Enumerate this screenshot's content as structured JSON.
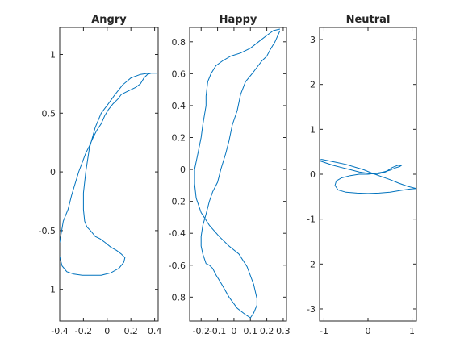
{
  "chart_data": [
    {
      "type": "line",
      "title": "Angry",
      "xlim": [
        -0.4,
        0.43
      ],
      "ylim": [
        -1.27,
        1.23
      ],
      "xticks": [
        -0.4,
        -0.2,
        0,
        0.2,
        0.4
      ],
      "xtick_labels": [
        "-0.4",
        "-0.2",
        "0",
        "0.2",
        "0.4"
      ],
      "yticks": [
        -1,
        -0.5,
        0,
        0.5,
        1
      ],
      "ytick_labels": [
        "-1",
        "-0.5",
        "0",
        "0.5",
        "1"
      ],
      "grid": false,
      "color": "#0072bd",
      "series": [
        {
          "x": [
            -0.4,
            -0.37,
            -0.33,
            -0.3,
            -0.27,
            -0.24,
            -0.21,
            -0.18,
            -0.15,
            -0.12,
            -0.09,
            -0.05,
            -0.02,
            0.01,
            0.05,
            0.09,
            0.12,
            0.16,
            0.2,
            0.24,
            0.28,
            0.31,
            0.34,
            0.37,
            0.4,
            0.42,
            0.35,
            0.28,
            0.2,
            0.13,
            0.06,
            0.01,
            -0.05,
            -0.1,
            -0.15,
            -0.18,
            -0.2,
            -0.2,
            -0.19,
            -0.17,
            -0.14,
            -0.1,
            -0.06,
            -0.02,
            0.03,
            0.08,
            0.12,
            0.15,
            0.14,
            0.1,
            0.03,
            -0.05,
            -0.13,
            -0.21,
            -0.28,
            -0.34,
            -0.38,
            -0.4
          ],
          "y": [
            -0.6,
            -0.42,
            -0.32,
            -0.2,
            -0.1,
            0,
            0.08,
            0.16,
            0.22,
            0.29,
            0.35,
            0.41,
            0.48,
            0.53,
            0.58,
            0.62,
            0.66,
            0.68,
            0.7,
            0.72,
            0.75,
            0.8,
            0.83,
            0.84,
            0.84,
            0.84,
            0.84,
            0.83,
            0.8,
            0.74,
            0.65,
            0.58,
            0.5,
            0.38,
            0.2,
            0,
            -0.18,
            -0.32,
            -0.42,
            -0.47,
            -0.5,
            -0.55,
            -0.57,
            -0.6,
            -0.64,
            -0.67,
            -0.7,
            -0.73,
            -0.77,
            -0.82,
            -0.86,
            -0.88,
            -0.88,
            -0.88,
            -0.87,
            -0.85,
            -0.8,
            -0.72
          ]
        }
      ]
    },
    {
      "type": "line",
      "title": "Happy",
      "xlim": [
        -0.27,
        0.32
      ],
      "ylim": [
        -0.95,
        0.89
      ],
      "xticks": [
        -0.2,
        -0.1,
        0,
        0.1,
        0.2,
        0.3
      ],
      "xtick_labels": [
        "-0.2",
        "-0.1",
        "0",
        "0.1",
        "0.2",
        "0.3"
      ],
      "yticks": [
        -0.8,
        -0.6,
        -0.4,
        -0.2,
        0,
        0.2,
        0.4,
        0.6,
        0.8
      ],
      "ytick_labels": [
        "-0.8",
        "-0.6",
        "-0.4",
        "-0.2",
        "0",
        "0.2",
        "0.4",
        "0.6",
        "0.8"
      ],
      "grid": false,
      "color": "#0072bd",
      "series": [
        {
          "x": [
            0.28,
            0.25,
            0.22,
            0.2,
            0.17,
            0.14,
            0.11,
            0.07,
            0.04,
            0.02,
            -0.01,
            -0.03,
            -0.05,
            -0.08,
            -0.1,
            -0.13,
            -0.15,
            -0.17,
            -0.19,
            -0.2,
            -0.2,
            -0.19,
            -0.18,
            -0.17,
            -0.15,
            -0.13,
            -0.11,
            -0.08,
            -0.03,
            0.02,
            0.07,
            0.1,
            0.12,
            0.14,
            0.14,
            0.12,
            0.08,
            0.03,
            -0.03,
            -0.09,
            -0.15,
            -0.2,
            -0.23,
            -0.24,
            -0.24,
            -0.22,
            -0.2,
            -0.19,
            -0.18,
            -0.17,
            -0.17,
            -0.16,
            -0.14,
            -0.11,
            -0.07,
            -0.02,
            0.04,
            0.1,
            0.15,
            0.2,
            0.24,
            0.28
          ],
          "y": [
            0.87,
            0.8,
            0.75,
            0.71,
            0.68,
            0.64,
            0.6,
            0.55,
            0.47,
            0.37,
            0.28,
            0.18,
            0.1,
            0,
            -0.08,
            -0.14,
            -0.2,
            -0.28,
            -0.35,
            -0.42,
            -0.48,
            -0.53,
            -0.56,
            -0.59,
            -0.6,
            -0.62,
            -0.66,
            -0.71,
            -0.8,
            -0.87,
            -0.91,
            -0.93,
            -0.9,
            -0.85,
            -0.81,
            -0.72,
            -0.61,
            -0.53,
            -0.48,
            -0.42,
            -0.35,
            -0.27,
            -0.18,
            -0.09,
            0,
            0.1,
            0.2,
            0.28,
            0.34,
            0.4,
            0.46,
            0.55,
            0.6,
            0.65,
            0.68,
            0.71,
            0.73,
            0.76,
            0.8,
            0.84,
            0.87,
            0.88
          ]
        }
      ]
    },
    {
      "type": "line",
      "title": "Neutral",
      "xlim": [
        -1.1,
        1.1
      ],
      "ylim": [
        -3.27,
        3.27
      ],
      "xticks": [
        -1,
        0,
        1
      ],
      "xtick_labels": [
        "-1",
        "0",
        "1"
      ],
      "yticks": [
        -3,
        -2,
        -1,
        0,
        1,
        2,
        3
      ],
      "ytick_labels": [
        "-3",
        "-2",
        "-1",
        "0",
        "1",
        "2",
        "3"
      ],
      "grid": false,
      "color": "#0072bd",
      "series": [
        {
          "x": [
            -1.1,
            -0.95,
            -0.8,
            -0.6,
            -0.4,
            -0.2,
            0,
            0.2,
            0.4,
            0.55,
            0.68,
            0.75,
            0.72,
            0.62,
            0.5,
            0.35,
            0.18,
            0,
            -0.2,
            -0.4,
            -0.6,
            -0.72,
            -0.75,
            -0.68,
            -0.5,
            -0.25,
            0,
            0.25,
            0.5,
            0.75,
            0.95,
            1.1,
            0.9,
            0.7,
            0.5,
            0.3,
            0.1,
            -0.1,
            -0.3,
            -0.5,
            -0.7,
            -0.9,
            -1.05,
            -1.1
          ],
          "y": [
            0.3,
            0.25,
            0.2,
            0.15,
            0.1,
            0.05,
            0.02,
            0,
            0.05,
            0.15,
            0.2,
            0.19,
            0.17,
            0.14,
            0.09,
            0.05,
            0.02,
            0,
            0,
            -0.03,
            -0.08,
            -0.15,
            -0.25,
            -0.35,
            -0.4,
            -0.42,
            -0.43,
            -0.42,
            -0.4,
            -0.36,
            -0.33,
            -0.32,
            -0.27,
            -0.2,
            -0.12,
            -0.05,
            0.02,
            0.1,
            0.16,
            0.22,
            0.26,
            0.3,
            0.33,
            0.32
          ]
        }
      ]
    }
  ]
}
